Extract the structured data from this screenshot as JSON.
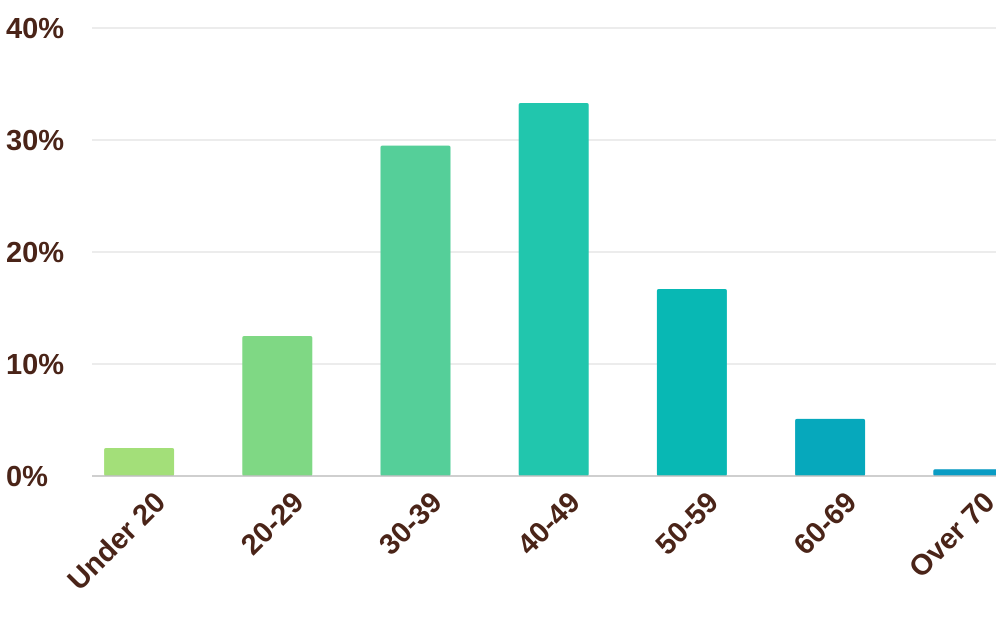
{
  "chart_data": {
    "type": "bar",
    "title": "",
    "xlabel": "",
    "ylabel": "",
    "ylim": [
      0,
      40
    ],
    "y_ticks": [
      {
        "value": 0,
        "label": "0%"
      },
      {
        "value": 10,
        "label": "10%"
      },
      {
        "value": 20,
        "label": "20%"
      },
      {
        "value": 30,
        "label": "30%"
      },
      {
        "value": 40,
        "label": "40%"
      }
    ],
    "categories": [
      "Under 20",
      "20-29",
      "30-39",
      "40-49",
      "50-59",
      "60-69",
      "Over 70"
    ],
    "values": [
      2.5,
      12.5,
      29.5,
      33.3,
      16.7,
      5.1,
      0.6
    ],
    "colors": [
      "#a3df79",
      "#7fd884",
      "#55cf99",
      "#21c6ad",
      "#08b8b4",
      "#06a8bc",
      "#0a9cc4"
    ],
    "grid": true,
    "legend": "none"
  }
}
